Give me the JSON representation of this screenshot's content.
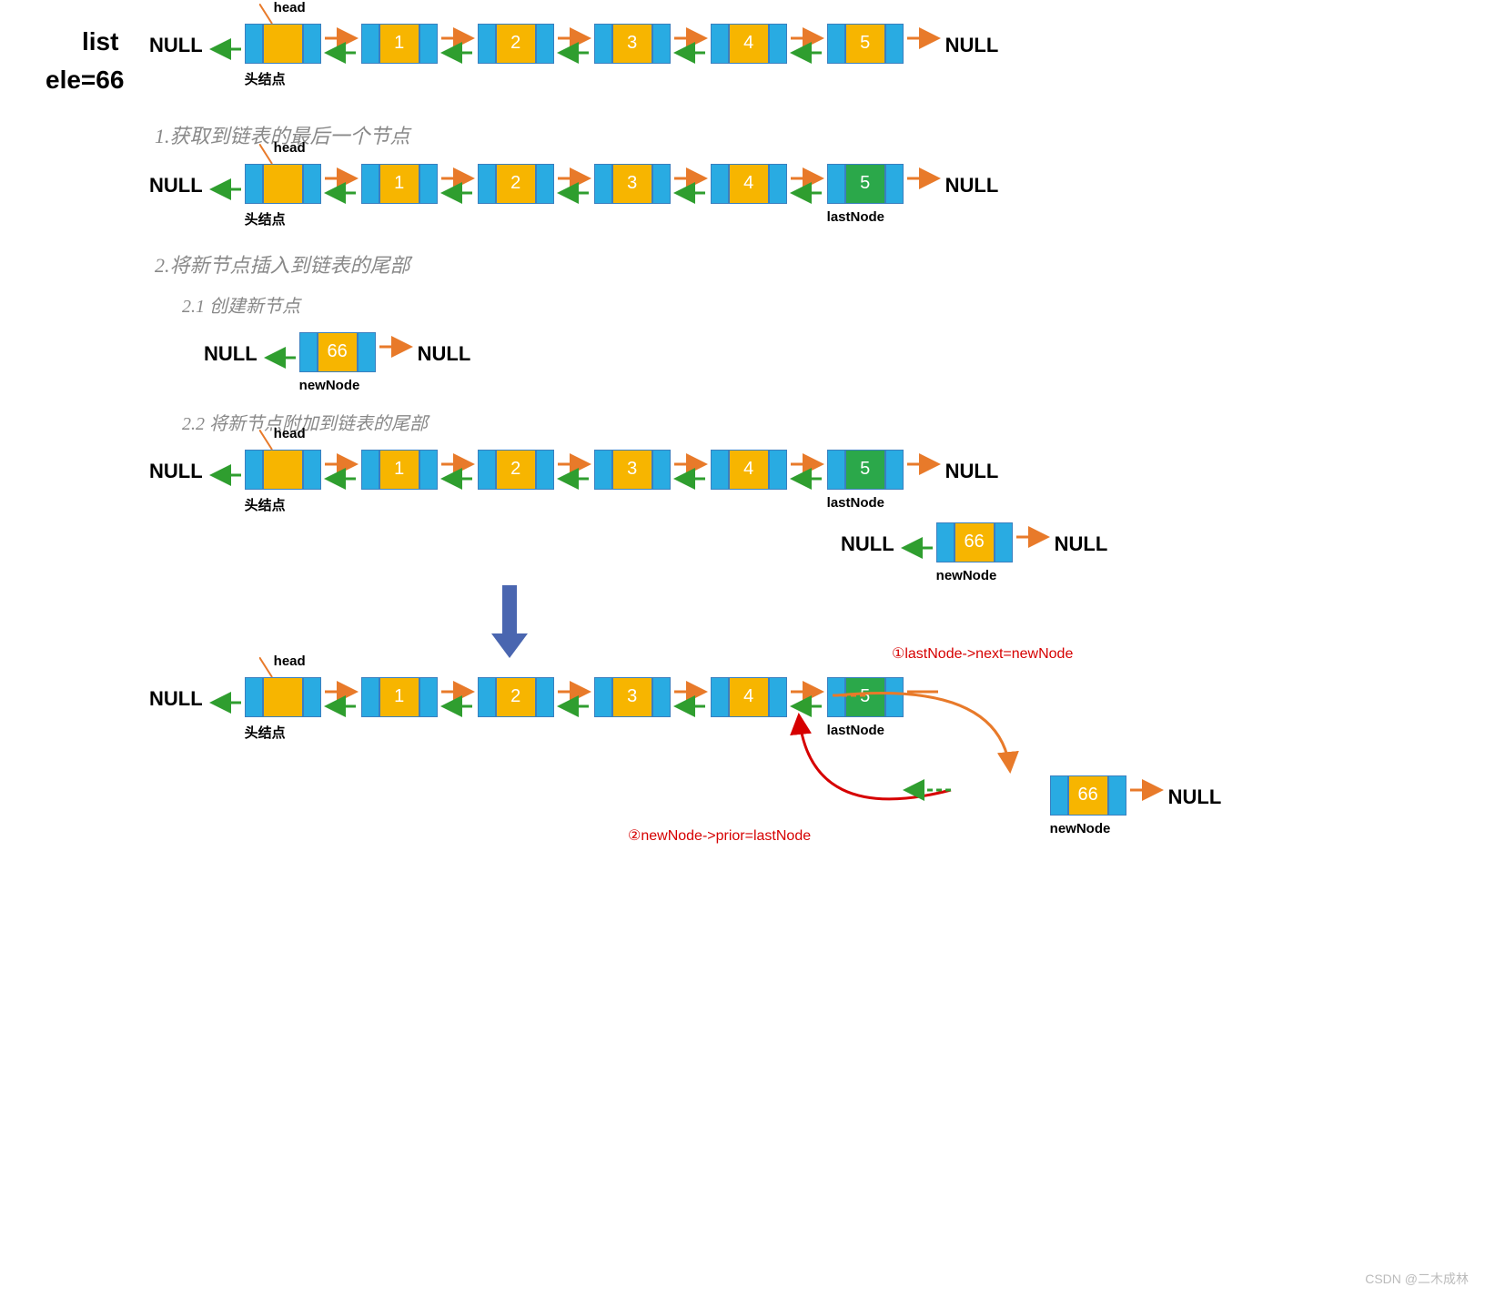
{
  "colors": {
    "node_prev_next": "#29abe2",
    "node_data": "#f7b500",
    "node_highlight": "#2ba84a",
    "arrow_next": "#e87a2a",
    "arrow_prev": "#2f9e2f",
    "big_arrow": "#4a66b0",
    "red_note": "#d60000",
    "subtitle": "#888888",
    "text": "#000000"
  },
  "labels": {
    "list": "list",
    "ele": "ele=66",
    "null": "NULL",
    "head": "head",
    "head_node": "头结点",
    "lastNode": "lastNode",
    "newNode": "newNode",
    "watermark": "CSDN @二木成林"
  },
  "steps": {
    "s1": "1.获取到链表的最后一个节点",
    "s2": "2.将新节点插入到链表的尾部",
    "s2_1": "2.1 创建新节点",
    "s2_2": "2.2 将新节点附加到链表的尾部"
  },
  "notes": {
    "n1": "①lastNode->next=newNode",
    "n2": "②newNode->prior=lastNode"
  },
  "lists": {
    "row1": {
      "nodes": [
        {
          "val": "",
          "green": false,
          "headPtr": true,
          "labelBelow": "头结点"
        },
        {
          "val": "1",
          "green": false
        },
        {
          "val": "2",
          "green": false
        },
        {
          "val": "3",
          "green": false
        },
        {
          "val": "4",
          "green": false
        },
        {
          "val": "5",
          "green": false
        }
      ]
    },
    "row2": {
      "nodes": [
        {
          "val": "",
          "green": false,
          "headPtr": true,
          "labelBelow": "头结点"
        },
        {
          "val": "1",
          "green": false
        },
        {
          "val": "2",
          "green": false
        },
        {
          "val": "3",
          "green": false
        },
        {
          "val": "4",
          "green": false
        },
        {
          "val": "5",
          "green": true,
          "labelBelow": "lastNode"
        }
      ]
    },
    "singleNew": {
      "nodes": [
        {
          "val": "66",
          "green": false,
          "labelBelow": "newNode"
        }
      ]
    },
    "row3": {
      "nodes": [
        {
          "val": "",
          "green": false,
          "headPtr": true,
          "labelBelow": "头结点"
        },
        {
          "val": "1",
          "green": false
        },
        {
          "val": "2",
          "green": false
        },
        {
          "val": "3",
          "green": false
        },
        {
          "val": "4",
          "green": false
        },
        {
          "val": "5",
          "green": true,
          "labelBelow": "lastNode"
        }
      ]
    },
    "row3_new": {
      "nodes": [
        {
          "val": "66",
          "green": false,
          "labelBelow": "newNode"
        }
      ]
    },
    "row4": {
      "nodes": [
        {
          "val": "",
          "green": false,
          "headPtr": true,
          "labelBelow": "头结点"
        },
        {
          "val": "1",
          "green": false
        },
        {
          "val": "2",
          "green": false
        },
        {
          "val": "3",
          "green": false
        },
        {
          "val": "4",
          "green": false
        },
        {
          "val": "5",
          "green": true,
          "labelBelow": "lastNode"
        }
      ]
    },
    "row4_new": {
      "nodes": [
        {
          "val": "66",
          "green": false,
          "labelBelow": "newNode"
        }
      ]
    }
  }
}
